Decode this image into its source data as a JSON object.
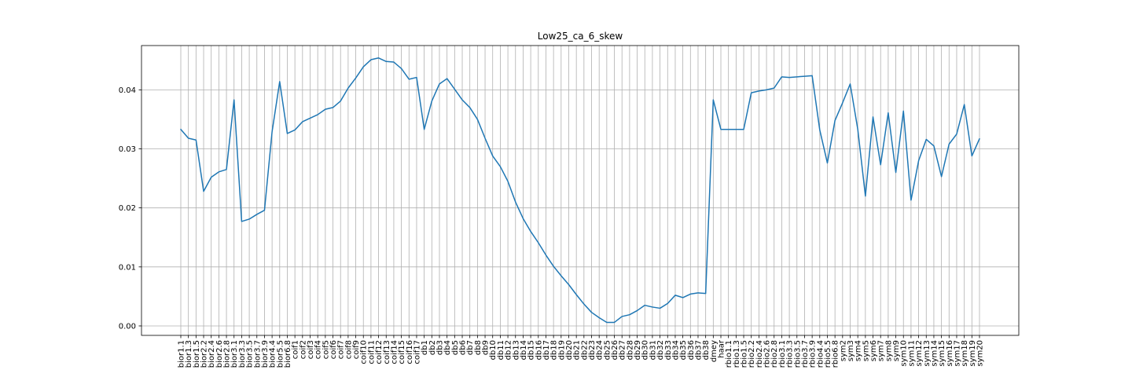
{
  "chart_data": {
    "type": "line",
    "title": "Low25_ca_6_skew",
    "xlabel": "",
    "ylabel": "",
    "ylim": [
      -0.0016,
      0.0475
    ],
    "yticks": [
      0.0,
      0.01,
      0.02,
      0.03,
      0.04
    ],
    "ytick_labels": [
      "0.00",
      "0.01",
      "0.02",
      "0.03",
      "0.04"
    ],
    "grid": true,
    "line_color": "#1f77b4",
    "categories": [
      "bior1.1",
      "bior1.3",
      "bior1.5",
      "bior2.2",
      "bior2.4",
      "bior2.6",
      "bior2.8",
      "bior3.1",
      "bior3.3",
      "bior3.5",
      "bior3.7",
      "bior3.9",
      "bior4.4",
      "bior5.5",
      "bior6.8",
      "coif1",
      "coif2",
      "coif3",
      "coif4",
      "coif5",
      "coif6",
      "coif7",
      "coif8",
      "coif9",
      "coif10",
      "coif11",
      "coif12",
      "coif13",
      "coif14",
      "coif15",
      "coif16",
      "coif17",
      "db1",
      "db2",
      "db3",
      "db4",
      "db5",
      "db6",
      "db7",
      "db8",
      "db9",
      "db10",
      "db11",
      "db12",
      "db13",
      "db14",
      "db15",
      "db16",
      "db17",
      "db18",
      "db19",
      "db20",
      "db21",
      "db22",
      "db23",
      "db24",
      "db25",
      "db26",
      "db27",
      "db28",
      "db29",
      "db30",
      "db31",
      "db32",
      "db33",
      "db34",
      "db35",
      "db36",
      "db37",
      "db38",
      "dmey",
      "haar",
      "rbio1.1",
      "rbio1.3",
      "rbio1.5",
      "rbio2.2",
      "rbio2.4",
      "rbio2.6",
      "rbio2.8",
      "rbio3.1",
      "rbio3.3",
      "rbio3.5",
      "rbio3.7",
      "rbio3.9",
      "rbio4.4",
      "rbio5.5",
      "rbio6.8",
      "sym2",
      "sym3",
      "sym4",
      "sym5",
      "sym6",
      "sym7",
      "sym8",
      "sym9",
      "sym10",
      "sym11",
      "sym12",
      "sym13",
      "sym14",
      "sym15",
      "sym16",
      "sym17",
      "sym18",
      "sym19",
      "sym20"
    ],
    "values": [
      0.0333,
      0.0318,
      0.0315,
      0.0228,
      0.0252,
      0.0261,
      0.0265,
      0.0383,
      0.0177,
      0.0181,
      0.0189,
      0.0196,
      0.0329,
      0.0414,
      0.0326,
      0.0332,
      0.0346,
      0.0352,
      0.0358,
      0.0367,
      0.037,
      0.0381,
      0.0403,
      0.042,
      0.0439,
      0.0451,
      0.0454,
      0.0448,
      0.0447,
      0.0436,
      0.0418,
      0.0421,
      0.0333,
      0.0381,
      0.041,
      0.0419,
      0.0401,
      0.0383,
      0.037,
      0.035,
      0.0318,
      0.0288,
      0.027,
      0.0245,
      0.021,
      0.0182,
      0.016,
      0.0141,
      0.012,
      0.0101,
      0.0085,
      0.007,
      0.0053,
      0.0037,
      0.0023,
      0.0014,
      0.0006,
      0.0006,
      0.0016,
      0.0019,
      0.0026,
      0.0035,
      0.0032,
      0.003,
      0.0038,
      0.0052,
      0.0048,
      0.0054,
      0.0056,
      0.0055,
      0.0383,
      0.0333,
      0.0333,
      0.0333,
      0.0333,
      0.0395,
      0.0398,
      0.04,
      0.0403,
      0.0422,
      0.0421,
      0.0422,
      0.0423,
      0.0424,
      0.0332,
      0.0276,
      0.0348,
      0.0378,
      0.041,
      0.0333,
      0.022,
      0.0354,
      0.0273,
      0.0361,
      0.026,
      0.0364,
      0.0213,
      0.028,
      0.0316,
      0.0305,
      0.0253,
      0.0308,
      0.0325,
      0.0375,
      0.0288,
      0.0317
    ]
  }
}
